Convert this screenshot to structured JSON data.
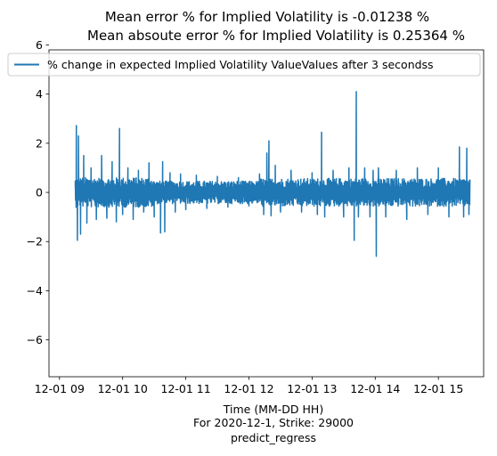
{
  "chart_data": {
    "type": "line",
    "title_lines": [
      "Mean error % for Implied Volatility is -0.01238 %",
      "Mean absoute error % for Implied Volatility is 0.25364 %"
    ],
    "xlabel_lines": [
      "Time (MM-DD HH)",
      "For 2020-12-1, Strike: 29000",
      "predict_regress"
    ],
    "ylabel": "",
    "ylim": [
      -7.5,
      5.8
    ],
    "yticks": [
      -6,
      -4,
      -2,
      0,
      2,
      4,
      6
    ],
    "xlim": [
      "2020-12-01 08:50",
      "2020-12-01 15:43"
    ],
    "xticks": [
      {
        "value": "2020-12-01 09:00",
        "label": "12-01 09"
      },
      {
        "value": "2020-12-01 10:00",
        "label": "12-01 10"
      },
      {
        "value": "2020-12-01 11:00",
        "label": "12-01 11"
      },
      {
        "value": "2020-12-01 12:00",
        "label": "12-01 12"
      },
      {
        "value": "2020-12-01 13:00",
        "label": "12-01 13"
      },
      {
        "value": "2020-12-01 14:00",
        "label": "12-01 14"
      },
      {
        "value": "2020-12-01 15:00",
        "label": "12-01 15"
      }
    ],
    "legend_placement": "top",
    "grid": false,
    "series": [
      {
        "name": "% change in expected Implied Volatility ValueValues after 3 secondss",
        "color": "#1f77b4",
        "time_range": [
          "2020-12-01 09:15",
          "2020-12-01 15:30"
        ],
        "points": [
          {
            "x": "2020-12-01 09:15",
            "y": 0.2
          },
          {
            "x": "2020-12-01 09:16",
            "y": 2.72
          },
          {
            "x": "2020-12-01 09:17",
            "y": -1.95
          },
          {
            "x": "2020-12-01 09:18",
            "y": 2.3
          },
          {
            "x": "2020-12-01 09:20",
            "y": -1.7
          },
          {
            "x": "2020-12-01 09:23",
            "y": 1.5
          },
          {
            "x": "2020-12-01 09:26",
            "y": -1.25
          },
          {
            "x": "2020-12-01 09:30",
            "y": 1.0
          },
          {
            "x": "2020-12-01 09:35",
            "y": -1.1
          },
          {
            "x": "2020-12-01 09:40",
            "y": 1.5
          },
          {
            "x": "2020-12-01 09:45",
            "y": -1.05
          },
          {
            "x": "2020-12-01 09:50",
            "y": 1.25
          },
          {
            "x": "2020-12-01 09:54",
            "y": -1.2
          },
          {
            "x": "2020-12-01 09:57",
            "y": 2.6
          },
          {
            "x": "2020-12-01 10:00",
            "y": -0.9
          },
          {
            "x": "2020-12-01 10:05",
            "y": 1.0
          },
          {
            "x": "2020-12-01 10:10",
            "y": -1.1
          },
          {
            "x": "2020-12-01 10:15",
            "y": 0.9
          },
          {
            "x": "2020-12-01 10:20",
            "y": -0.8
          },
          {
            "x": "2020-12-01 10:25",
            "y": 1.2
          },
          {
            "x": "2020-12-01 10:30",
            "y": -1.0
          },
          {
            "x": "2020-12-01 10:36",
            "y": -1.65
          },
          {
            "x": "2020-12-01 10:38",
            "y": 1.25
          },
          {
            "x": "2020-12-01 10:40",
            "y": -1.6
          },
          {
            "x": "2020-12-01 10:45",
            "y": 0.8
          },
          {
            "x": "2020-12-01 10:50",
            "y": -0.8
          },
          {
            "x": "2020-12-01 10:55",
            "y": 0.75
          },
          {
            "x": "2020-12-01 11:00",
            "y": -0.7
          },
          {
            "x": "2020-12-01 11:10",
            "y": 0.7
          },
          {
            "x": "2020-12-01 11:20",
            "y": -0.65
          },
          {
            "x": "2020-12-01 11:30",
            "y": 0.65
          },
          {
            "x": "2020-12-01 11:40",
            "y": -0.6
          },
          {
            "x": "2020-12-01 11:50",
            "y": 0.6
          },
          {
            "x": "2020-12-01 12:00",
            "y": -0.55
          },
          {
            "x": "2020-12-01 12:10",
            "y": 0.75
          },
          {
            "x": "2020-12-01 12:14",
            "y": -0.9
          },
          {
            "x": "2020-12-01 12:17",
            "y": 1.6
          },
          {
            "x": "2020-12-01 12:19",
            "y": 2.1
          },
          {
            "x": "2020-12-01 12:21",
            "y": -0.95
          },
          {
            "x": "2020-12-01 12:25",
            "y": 1.1
          },
          {
            "x": "2020-12-01 12:30",
            "y": -0.8
          },
          {
            "x": "2020-12-01 12:40",
            "y": 0.9
          },
          {
            "x": "2020-12-01 12:50",
            "y": -0.8
          },
          {
            "x": "2020-12-01 13:00",
            "y": 0.8
          },
          {
            "x": "2020-12-01 13:05",
            "y": -0.9
          },
          {
            "x": "2020-12-01 13:09",
            "y": 2.45
          },
          {
            "x": "2020-12-01 13:12",
            "y": -1.0
          },
          {
            "x": "2020-12-01 13:20",
            "y": 0.9
          },
          {
            "x": "2020-12-01 13:30",
            "y": -1.0
          },
          {
            "x": "2020-12-01 13:35",
            "y": 1.0
          },
          {
            "x": "2020-12-01 13:40",
            "y": -1.95
          },
          {
            "x": "2020-12-01 13:42",
            "y": 4.1
          },
          {
            "x": "2020-12-01 13:44",
            "y": -1.0
          },
          {
            "x": "2020-12-01 13:50",
            "y": 1.0
          },
          {
            "x": "2020-12-01 13:55",
            "y": -1.0
          },
          {
            "x": "2020-12-01 13:58",
            "y": 0.9
          },
          {
            "x": "2020-12-01 14:01",
            "y": -2.6
          },
          {
            "x": "2020-12-01 14:03",
            "y": 1.0
          },
          {
            "x": "2020-12-01 14:10",
            "y": -1.0
          },
          {
            "x": "2020-12-01 14:20",
            "y": 0.9
          },
          {
            "x": "2020-12-01 14:30",
            "y": -1.1
          },
          {
            "x": "2020-12-01 14:40",
            "y": 1.0
          },
          {
            "x": "2020-12-01 14:50",
            "y": -0.9
          },
          {
            "x": "2020-12-01 15:00",
            "y": 1.0
          },
          {
            "x": "2020-12-01 15:10",
            "y": -1.0
          },
          {
            "x": "2020-12-01 15:20",
            "y": 1.85
          },
          {
            "x": "2020-12-01 15:24",
            "y": -1.0
          },
          {
            "x": "2020-12-01 15:27",
            "y": 1.8
          },
          {
            "x": "2020-12-01 15:29",
            "y": -0.9
          },
          {
            "x": "2020-12-01 15:30",
            "y": 0.5
          }
        ]
      }
    ]
  }
}
